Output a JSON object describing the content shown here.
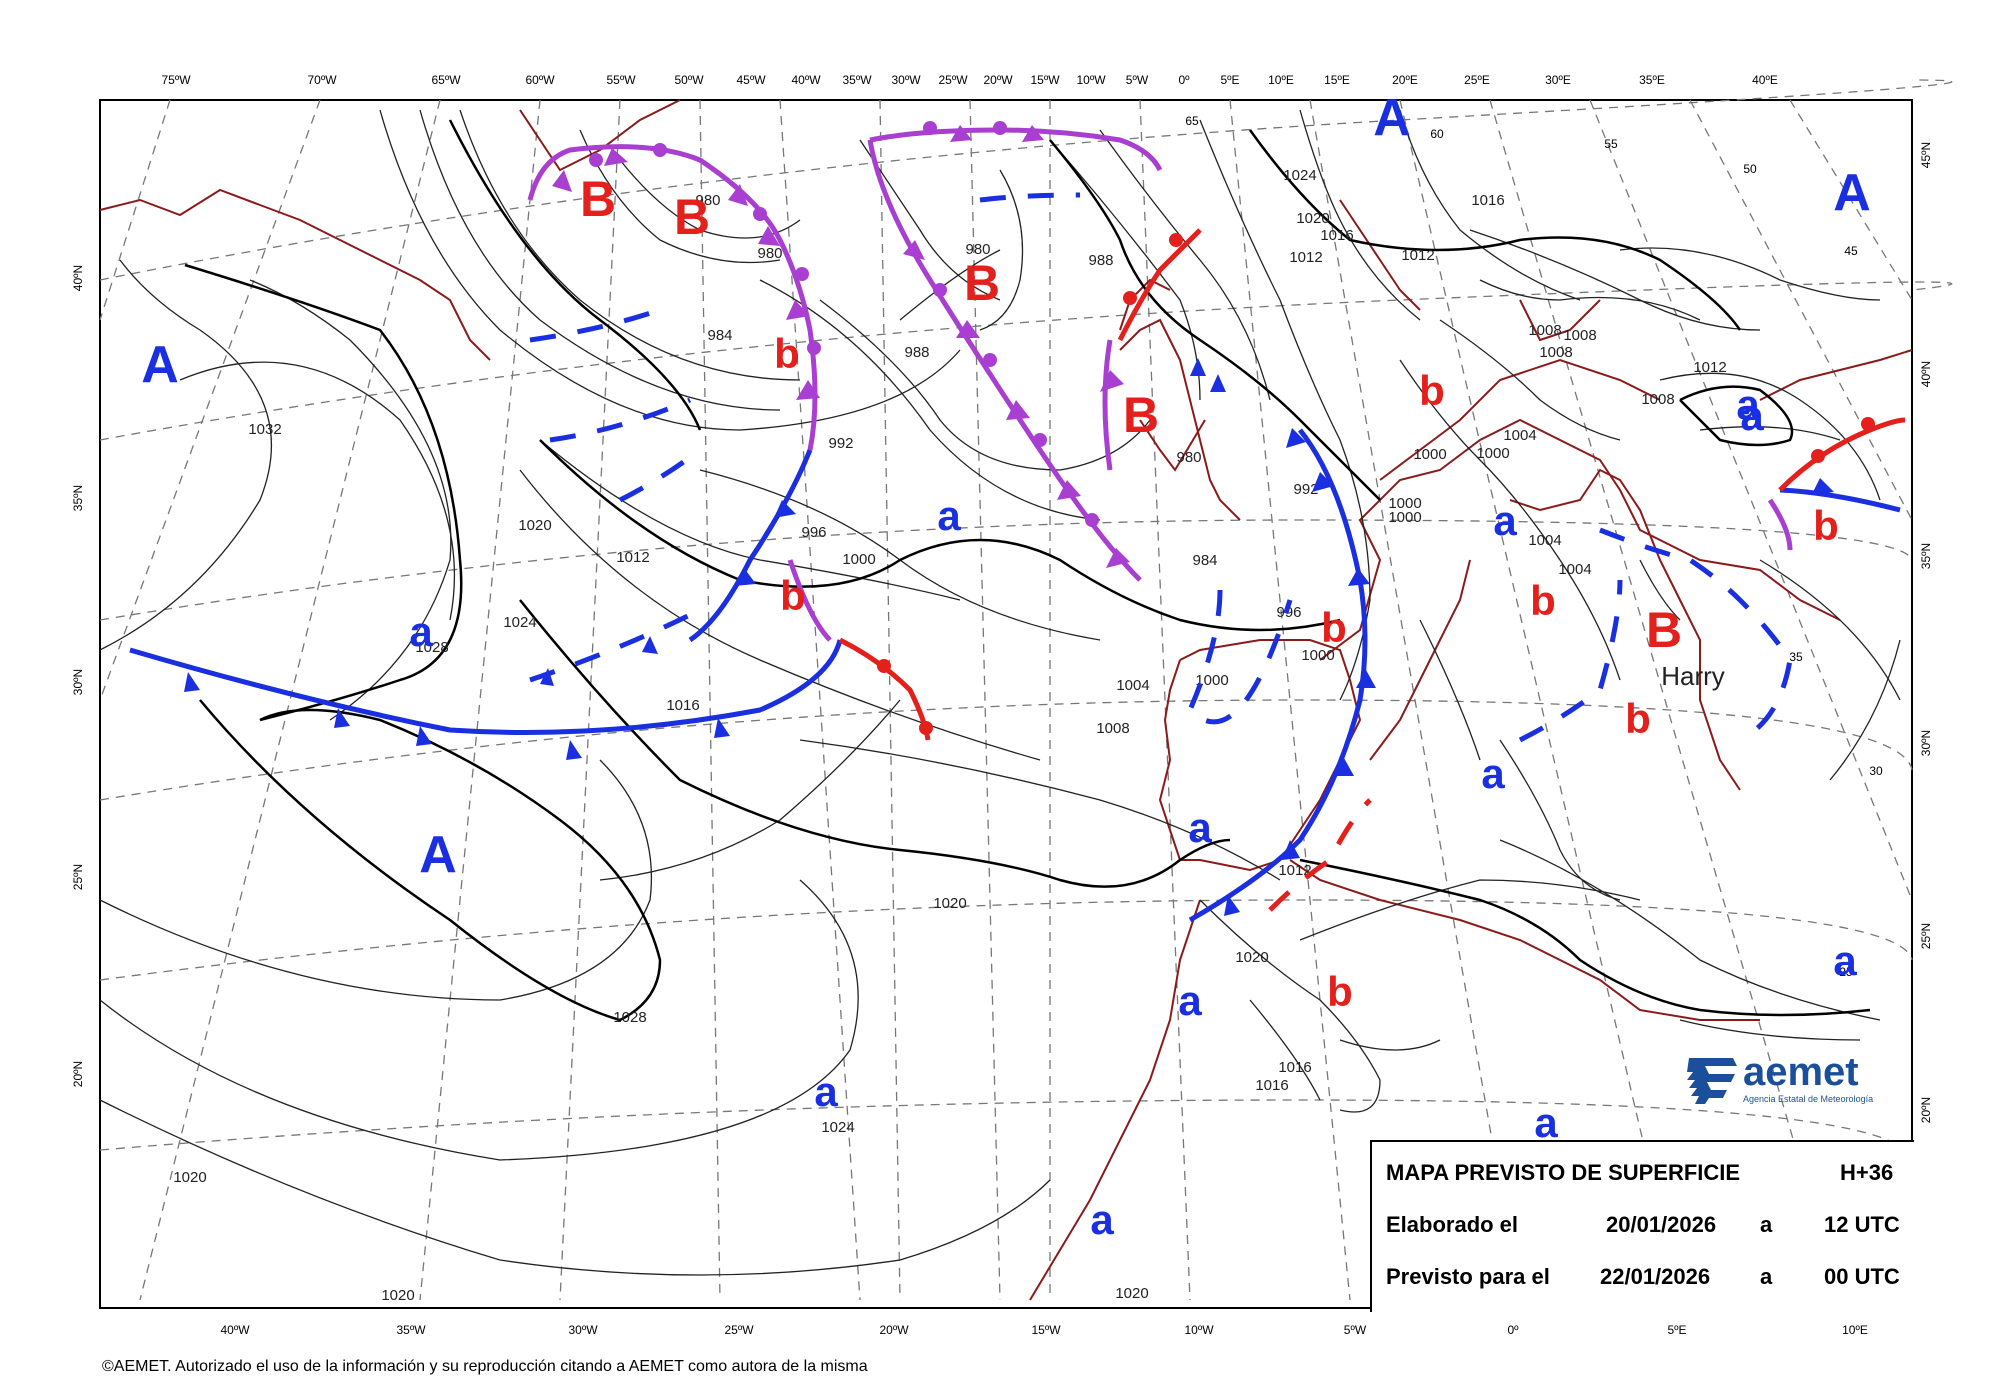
{
  "top_lon_labels": [
    "75ºW",
    "70ºW",
    "65ºW",
    "60ºW",
    "55ºW",
    "50ºW",
    "45ºW",
    "40ºW",
    "35ºW",
    "30ºW",
    "25ºW",
    "20ºW",
    "15ºW",
    "10ºW",
    "5ºW",
    "0º",
    "5ºE",
    "10ºE",
    "15ºE",
    "20ºE",
    "25ºE",
    "30ºE",
    "35ºE",
    "40ºE"
  ],
  "bottom_lon_labels": [
    "40ºW",
    "35ºW",
    "30ºW",
    "25ºW",
    "20ºW",
    "15ºW",
    "10ºW",
    "5ºW",
    "0º",
    "5ºE",
    "10ºE"
  ],
  "left_lat_labels": [
    "40ºN",
    "35ºN",
    "30ºN",
    "25ºN",
    "20ºN"
  ],
  "right_lat_labels": [
    "45ºN",
    "40ºN",
    "35ºN",
    "30ºN",
    "25ºN",
    "20ºN"
  ],
  "graticule_numbers": [
    "65",
    "60",
    "55",
    "50",
    "45",
    "35",
    "30",
    "25"
  ],
  "isobar_labels": [
    "1032",
    "1028",
    "1028",
    "1024",
    "1024",
    "1020",
    "1020",
    "1020",
    "1020",
    "1020",
    "1020",
    "1016",
    "1016",
    "1016",
    "1016",
    "1016",
    "1012",
    "1012",
    "1012",
    "1012",
    "1008",
    "1008",
    "1008",
    "1008",
    "1008",
    "1004",
    "1004",
    "1004",
    "1004",
    "1000",
    "1000",
    "1000",
    "1000",
    "1000",
    "1000",
    "1000",
    "996",
    "996",
    "992",
    "992",
    "988",
    "988",
    "984",
    "984",
    "980",
    "980",
    "980",
    "980",
    "1024",
    "1020",
    "1012"
  ],
  "pressure_centers": {
    "highs_major": [
      "A",
      "A",
      "A",
      "A"
    ],
    "lows_major": [
      "B",
      "B",
      "B",
      "B",
      "B"
    ],
    "highs_minor": [
      "a",
      "a",
      "a",
      "a",
      "a",
      "a",
      "a",
      "a",
      "a",
      "a",
      "a",
      "a"
    ],
    "lows_minor": [
      "b",
      "b",
      "b",
      "b",
      "b",
      "b",
      "b",
      "b"
    ]
  },
  "storm_name": "Harry",
  "info": {
    "title": "MAPA PREVISTO DE SUPERFICIE",
    "lead": "H+36",
    "elaborated_label": "Elaborado el",
    "elaborated_date": "20/01/2026",
    "elaborated_a": "a",
    "elaborated_time": "12 UTC",
    "valid_label": "Previsto para el",
    "valid_date": "22/01/2026",
    "valid_a": "a",
    "valid_time": "00 UTC"
  },
  "logo": {
    "word": "aemet",
    "sub": "Agencia Estatal de Meteorología"
  },
  "copyright": "©AEMET. Autorizado el uso de la información y su reproducción citando a AEMET como autora de la misma",
  "colors": {
    "high": "#1a2fe0",
    "low": "#e3201b",
    "cold_front": "#1a2fe0",
    "warm_front": "#e3201b",
    "occluded_front": "#a83fd0",
    "coast": "#8b1a1a",
    "isobar": "#222222",
    "graticule": "#777777"
  }
}
